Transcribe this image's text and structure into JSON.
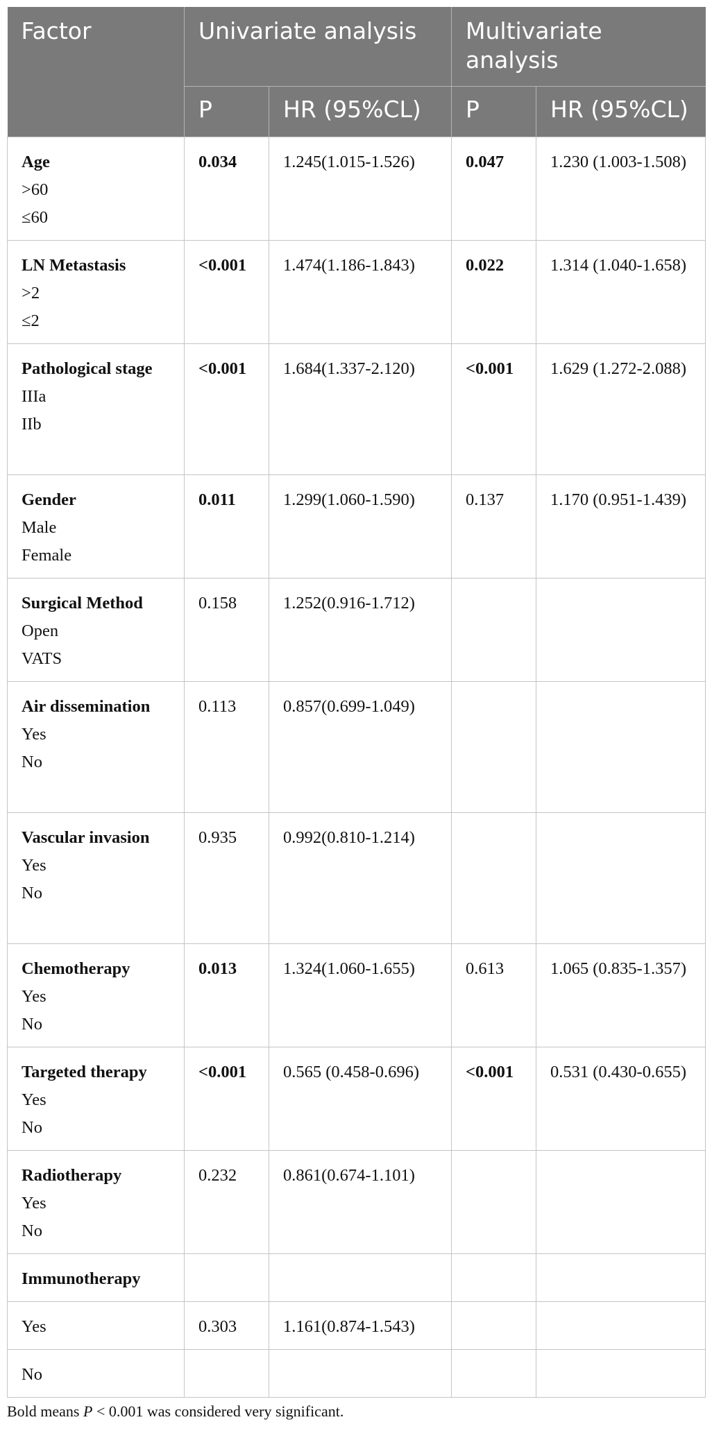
{
  "header": {
    "factor": "Factor",
    "univariate": "Univariate analysis",
    "multivariate": "Multivariate analysis",
    "uni_p": "P",
    "uni_hr": "HR (95%CL)",
    "multi_p": "P",
    "multi_hr": "HR (95%CL)"
  },
  "rows": [
    {
      "factor": "Age",
      "levels": [
        ">60",
        "≤60"
      ],
      "uni_p": "0.034",
      "uni_p_bold": true,
      "uni_hr": "1.245(1.015-1.526)",
      "multi_p": "0.047",
      "multi_p_bold": true,
      "multi_hr": "1.230 (1.003-1.508)"
    },
    {
      "factor": "LN Metastasis",
      "levels": [
        ">2",
        "≤2"
      ],
      "uni_p": "<0.001",
      "uni_p_bold": true,
      "uni_hr": "1.474(1.186-1.843)",
      "multi_p": "0.022",
      "multi_p_bold": true,
      "multi_hr": "1.314 (1.040-1.658)"
    },
    {
      "factor": "Pathological stage",
      "levels": [
        "IIIa",
        "IIb"
      ],
      "uni_p": "<0.001",
      "uni_p_bold": true,
      "uni_hr": "1.684(1.337-2.120)",
      "multi_p": "<0.001",
      "multi_p_bold": true,
      "multi_hr": "1.629 (1.272-2.088)"
    },
    {
      "factor": "Gender",
      "levels": [
        "Male",
        "Female"
      ],
      "uni_p": "0.011",
      "uni_p_bold": true,
      "uni_hr": "1.299(1.060-1.590)",
      "multi_p": "0.137",
      "multi_p_bold": false,
      "multi_hr": "1.170 (0.951-1.439)"
    },
    {
      "factor": "Surgical Method",
      "levels": [
        "Open",
        "VATS"
      ],
      "uni_p": "0.158",
      "uni_p_bold": false,
      "uni_hr": "1.252(0.916-1.712)",
      "multi_p": "",
      "multi_p_bold": false,
      "multi_hr": ""
    },
    {
      "factor": "Air dissemination",
      "levels": [
        "Yes",
        "No"
      ],
      "uni_p": "0.113",
      "uni_p_bold": false,
      "uni_hr": "0.857(0.699-1.049)",
      "multi_p": "",
      "multi_p_bold": false,
      "multi_hr": ""
    },
    {
      "factor": "Vascular invasion",
      "levels": [
        "Yes",
        "No"
      ],
      "uni_p": "0.935",
      "uni_p_bold": false,
      "uni_hr": "0.992(0.810-1.214)",
      "multi_p": "",
      "multi_p_bold": false,
      "multi_hr": ""
    },
    {
      "factor": "Chemotherapy",
      "levels": [
        "Yes",
        "No"
      ],
      "uni_p": "0.013",
      "uni_p_bold": true,
      "uni_hr": "1.324(1.060-1.655)",
      "multi_p": "0.613",
      "multi_p_bold": false,
      "multi_hr": "1.065 (0.835-1.357)"
    },
    {
      "factor": "Targeted therapy",
      "levels": [
        "Yes",
        "No"
      ],
      "uni_p": "<0.001",
      "uni_p_bold": true,
      "uni_hr": "0.565 (0.458-0.696)",
      "multi_p": "<0.001",
      "multi_p_bold": true,
      "multi_hr": "0.531 (0.430-0.655)"
    },
    {
      "factor": "Radiotherapy",
      "levels": [
        "Yes",
        "No"
      ],
      "uni_p": "0.232",
      "uni_p_bold": false,
      "uni_hr": "0.861(0.674-1.101)",
      "multi_p": "",
      "multi_p_bold": false,
      "multi_hr": ""
    }
  ],
  "immunotherapy": {
    "factor": "Immunotherapy",
    "yes_label": "Yes",
    "yes_p": "0.303",
    "yes_hr": "1.161(0.874-1.543)",
    "no_label": "No"
  },
  "footnote": {
    "before": "Bold means ",
    "p": "P",
    "after": " < 0.001 was considered very significant."
  }
}
